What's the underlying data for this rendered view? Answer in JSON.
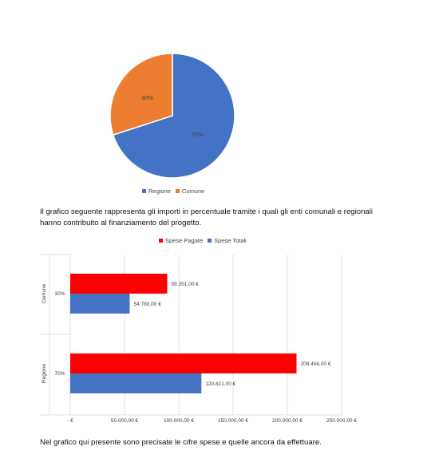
{
  "colors": {
    "regione_pie": "#4472C4",
    "comune_pie": "#ED7D31",
    "spese_pagate": "#FF0000",
    "spese_totali": "#4472C4",
    "grid": "#D9D9D9"
  },
  "paragraphs": {
    "intro": "Il grafico seguente rappresenta gli importi in percentuale tramite i quali gli enti comunali e regionali hanno contribuito al finanziamento del progetto.",
    "outro": "Nel grafico qui presente sono precisate le cifre spese e quelle ancora da effettuare."
  },
  "chart_data": [
    {
      "type": "pie",
      "categories": [
        "Regione",
        "Comune"
      ],
      "values": [
        70,
        30
      ],
      "data_labels": [
        "70%",
        "30%"
      ],
      "legend": [
        "Regione",
        "Comune"
      ],
      "legend_position": "bottom"
    },
    {
      "type": "bar",
      "orientation": "horizontal",
      "categories": [
        {
          "name": "Comune",
          "percent": "30%"
        },
        {
          "name": "Regione",
          "percent": "70%"
        }
      ],
      "series": [
        {
          "name": "Spese Pagate",
          "values": [
            89351,
            208456
          ],
          "labels": [
            "89.351,00 €",
            "208.456,00 €"
          ]
        },
        {
          "name": "Spese Totali",
          "values": [
            54780,
            120821
          ],
          "labels": [
            "54.780,00 €",
            "120.821,00 €"
          ]
        }
      ],
      "xlim": [
        0,
        250000
      ],
      "x_ticks": [
        0,
        50000,
        100000,
        150000,
        200000,
        250000
      ],
      "x_tick_labels": [
        "-  €",
        "50.000,00 €",
        "100.000,00 €",
        "150.000,00 €",
        "200.000,00 €",
        "250.000,00 €"
      ],
      "legend_position": "top",
      "grid": true
    }
  ]
}
